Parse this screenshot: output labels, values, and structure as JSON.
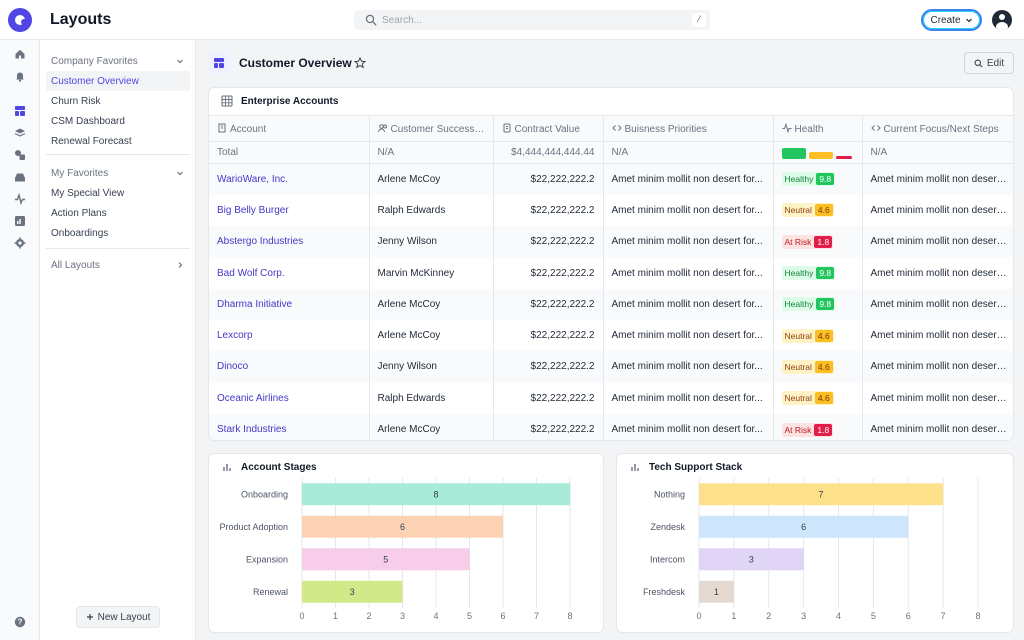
{
  "app": {
    "title": "Layouts"
  },
  "search": {
    "placeholder": "Search...",
    "shortcut": "/"
  },
  "header": {
    "create_label": "Create"
  },
  "sidebar": {
    "company_favorites": {
      "label": "Company Favorites",
      "items": [
        "Customer Overview",
        "Churn Risk",
        "CSM Dashboard",
        "Renewal Forecast"
      ],
      "active": "Customer Overview"
    },
    "my_favorites": {
      "label": "My Favorites",
      "items": [
        "My Special View",
        "Action Plans",
        "Onboardings"
      ]
    },
    "all_layouts_label": "All Layouts",
    "new_layout_label": "New Layout"
  },
  "page": {
    "title": "Customer Overview",
    "edit_label": "Edit"
  },
  "table": {
    "title": "Enterprise Accounts",
    "columns": [
      "Account",
      "Customer Success M...",
      "Contract Value",
      "Buisness Priorities",
      "Health",
      "Current Focus/Next Steps"
    ],
    "total": {
      "label": "Total",
      "csm": "N/A",
      "contract_value": "$4,444,444,444.44",
      "priorities": "N/A",
      "health_distribution": [
        {
          "status": "Healthy",
          "color": "#22c55e",
          "share": 0.38
        },
        {
          "status": "Neutral",
          "color": "#fbbf24",
          "share": 0.37
        },
        {
          "status": "At Risk",
          "color": "#e11d48",
          "share": 0.25
        }
      ],
      "focus": "N/A"
    },
    "rows": [
      {
        "account": "WarioWare, Inc.",
        "csm": "Arlene McCoy",
        "contract_value": "$22,222,222.2",
        "priorities": "Amet minim mollit non desert for...",
        "health": "Healthy",
        "score": "9.8",
        "focus": "Amet minim mollit non desert for..."
      },
      {
        "account": "Big Belly Burger",
        "csm": "Ralph Edwards",
        "contract_value": "$22,222,222.2",
        "priorities": "Amet minim mollit non desert for...",
        "health": "Neutral",
        "score": "4.6",
        "focus": "Amet minim mollit non desert for..."
      },
      {
        "account": "Abstergo Industries",
        "csm": "Jenny Wilson",
        "contract_value": "$22,222,222.2",
        "priorities": "Amet minim mollit non desert for...",
        "health": "At Risk",
        "score": "1.8",
        "focus": "Amet minim mollit non desert for..."
      },
      {
        "account": "Bad Wolf Corp.",
        "csm": "Marvin McKinney",
        "contract_value": "$22,222,222.2",
        "priorities": "Amet minim mollit non desert for...",
        "health": "Healthy",
        "score": "9.8",
        "focus": "Amet minim mollit non desert for..."
      },
      {
        "account": "Dharma Initiative",
        "csm": "Arlene McCoy",
        "contract_value": "$22,222,222.2",
        "priorities": "Amet minim mollit non desert for...",
        "health": "Healthy",
        "score": "9.8",
        "focus": "Amet minim mollit non desert for..."
      },
      {
        "account": "Lexcorp",
        "csm": "Arlene McCoy",
        "contract_value": "$22,222,222.2",
        "priorities": "Amet minim mollit non desert for...",
        "health": "Neutral",
        "score": "4.6",
        "focus": "Amet minim mollit non desert for..."
      },
      {
        "account": "Dinoco",
        "csm": "Jenny Wilson",
        "contract_value": "$22,222,222.2",
        "priorities": "Amet minim mollit non desert for...",
        "health": "Neutral",
        "score": "4.6",
        "focus": "Amet minim mollit non desert for..."
      },
      {
        "account": "Oceanic Airlines",
        "csm": "Ralph Edwards",
        "contract_value": "$22,222,222.2",
        "priorities": "Amet minim mollit non desert for...",
        "health": "Neutral",
        "score": "4.6",
        "focus": "Amet minim mollit non desert for..."
      },
      {
        "account": "Stark Industries",
        "csm": "Arlene McCoy",
        "contract_value": "$22,222,222.2",
        "priorities": "Amet minim mollit non desert for...",
        "health": "At Risk",
        "score": "1.8",
        "focus": "Amet minim mollit non desert for..."
      }
    ]
  },
  "chart_data": [
    {
      "type": "bar",
      "orientation": "horizontal",
      "title": "Account Stages",
      "categories": [
        "Onboarding",
        "Product Adoption",
        "Expansion",
        "Renewal"
      ],
      "values": [
        8,
        6,
        5,
        3
      ],
      "colors": [
        "#a7ebd8",
        "#fcd2b4",
        "#f8cdea",
        "#d2e889"
      ],
      "xlim": [
        0,
        8
      ],
      "xticks": [
        0,
        1,
        2,
        3,
        4,
        5,
        6,
        7,
        8
      ],
      "grid": true
    },
    {
      "type": "bar",
      "orientation": "horizontal",
      "title": "Tech Support Stack",
      "categories": [
        "Nothing",
        "Zendesk",
        "Intercom",
        "Freshdesk"
      ],
      "values": [
        7,
        6,
        3,
        1
      ],
      "colors": [
        "#fde08a",
        "#cde6fb",
        "#e0d5f7",
        "#e6d9d1"
      ],
      "xlim": [
        0,
        8
      ],
      "xticks": [
        0,
        1,
        2,
        3,
        4,
        5,
        6,
        7,
        8
      ],
      "grid": true
    }
  ],
  "icons": {
    "rail": [
      "home-icon",
      "bell-icon",
      "layouts-icon",
      "layers-icon",
      "shapes-icon",
      "inbox-icon",
      "activity-icon",
      "reports-icon",
      "settings-icon",
      "help-icon"
    ]
  }
}
